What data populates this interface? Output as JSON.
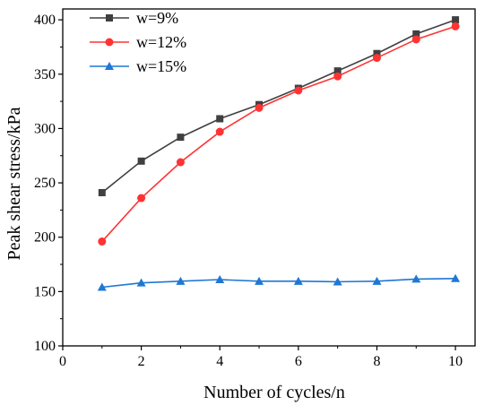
{
  "chart_data": {
    "type": "line",
    "title": "",
    "xlabel": "Number of cycles/n",
    "ylabel": "Peak shear stress/kPa",
    "xlim": [
      0,
      10.5
    ],
    "ylim": [
      100,
      410
    ],
    "x_ticks": [
      0,
      2,
      4,
      6,
      8,
      10
    ],
    "y_ticks": [
      100,
      150,
      200,
      250,
      300,
      350,
      400
    ],
    "grid": false,
    "legend_position": "top-left",
    "x": [
      1,
      2,
      3,
      4,
      5,
      6,
      7,
      8,
      9,
      10
    ],
    "series": [
      {
        "name": "w=9%",
        "color": "#404040",
        "marker": "square",
        "values": [
          241,
          270,
          292,
          309,
          322,
          337,
          353,
          369,
          387,
          400
        ]
      },
      {
        "name": "w=12%",
        "color": "#ff3333",
        "marker": "circle",
        "values": [
          196,
          236,
          269,
          297,
          319,
          335,
          348,
          365,
          382,
          394
        ]
      },
      {
        "name": "w=15%",
        "color": "#1f77d4",
        "marker": "triangle",
        "values": [
          154,
          158,
          159.5,
          161,
          159.5,
          159.5,
          159,
          159.5,
          161.5,
          162
        ]
      }
    ]
  }
}
